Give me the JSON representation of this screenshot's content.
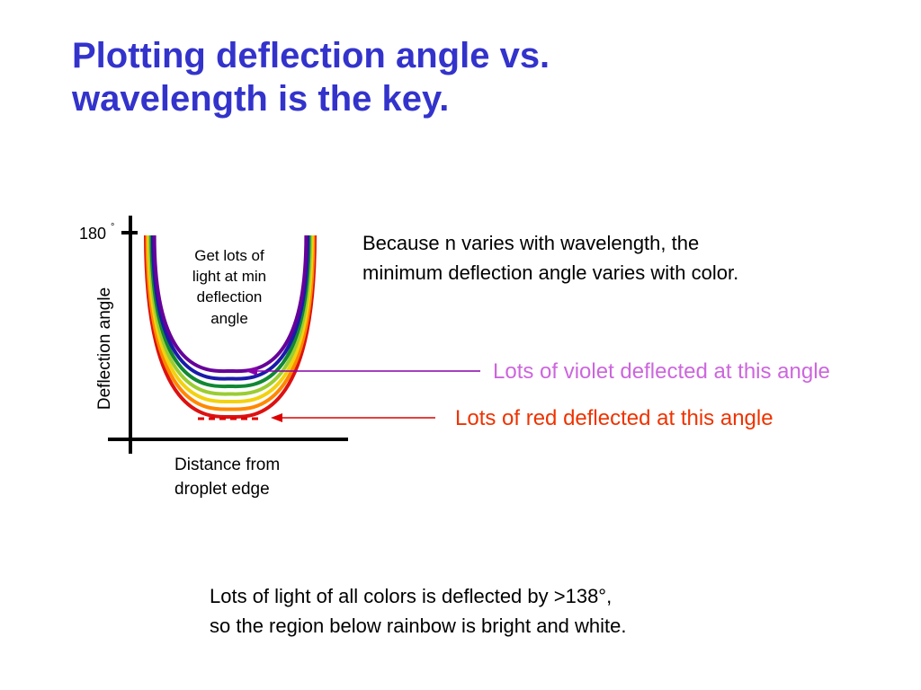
{
  "title": {
    "line1": "Plotting deflection angle vs.",
    "line2": "wavelength is the key."
  },
  "diagram": {
    "y_axis_label": "Deflection angle",
    "y_tick": "180",
    "y_tick_degree": "°",
    "inner_label": [
      "Get lots of",
      "light at min",
      "deflection",
      "angle"
    ],
    "x_axis_label": [
      "Distance from",
      "droplet edge"
    ],
    "curve_colors": [
      "#dd1111",
      "#ff8800",
      "#f2d20f",
      "#9acd32",
      "#118833",
      "#1a1aaa",
      "#660099"
    ],
    "axis_color": "#000000"
  },
  "explanation": {
    "line1": "Because n varies with wavelength, the",
    "line2": "minimum deflection angle varies with color."
  },
  "violet_callout": {
    "text": "Lots of violet deflected at this angle",
    "color": "#cc66dd",
    "arrow_color": "#8800aa"
  },
  "red_callout": {
    "text": "Lots of red deflected at this angle",
    "color": "#ee3300",
    "arrow_color": "#dd0000"
  },
  "bottom_note": {
    "line1": "Lots of light of all colors is deflected by >138°,",
    "line2": "so the region below rainbow is bright and white."
  }
}
